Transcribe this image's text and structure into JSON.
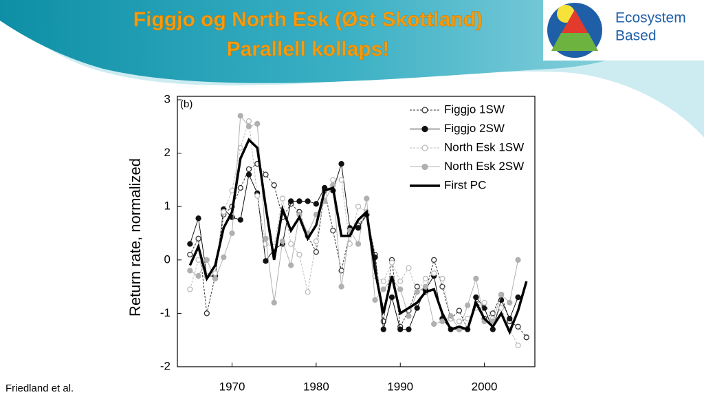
{
  "slide": {
    "title_lines": [
      "Figgjo og North Esk (Øst Skottland)",
      "Parallell kollaps!"
    ],
    "logo_lines": [
      "Ecosystem",
      "Based"
    ],
    "credit": "Friedland et al."
  },
  "chart_data": {
    "type": "line",
    "panel_label": "(b)",
    "ylabel": "Return rate, normalized",
    "x": [
      1965,
      1966,
      1967,
      1968,
      1969,
      1970,
      1971,
      1972,
      1973,
      1974,
      1975,
      1976,
      1977,
      1978,
      1979,
      1980,
      1981,
      1982,
      1983,
      1984,
      1985,
      1986,
      1987,
      1988,
      1989,
      1990,
      1991,
      1992,
      1993,
      1994,
      1995,
      1996,
      1997,
      1998,
      1999,
      2000,
      2001,
      2002,
      2003,
      2004,
      2005
    ],
    "xlim": [
      1963.5,
      2006
    ],
    "xticks": [
      1970,
      1980,
      1990,
      2000
    ],
    "ylim": [
      -2,
      3
    ],
    "yticks": [
      -2,
      -1,
      0,
      1,
      2,
      3
    ],
    "series": [
      {
        "name": "Figgjo 1SW",
        "color": "#333333",
        "marker": "open",
        "dash": true,
        "width": 1,
        "values": [
          0.1,
          0.4,
          -1.0,
          -0.3,
          0.85,
          1.0,
          1.35,
          1.7,
          1.8,
          1.6,
          1.4,
          0.8,
          1.05,
          0.9,
          0.45,
          0.15,
          1.3,
          0.55,
          -0.2,
          0.5,
          0.65,
          0.85,
          0.1,
          -1.15,
          0.0,
          -1.25,
          -0.95,
          -0.5,
          -0.6,
          0.0,
          -0.5,
          -1.1,
          -0.95,
          -1.3,
          -0.7,
          -1.1,
          -1.0,
          -0.65,
          -1.15,
          -1.25,
          -1.45
        ]
      },
      {
        "name": "Figgjo 2SW",
        "color": "#111111",
        "marker": "filled",
        "dash": false,
        "width": 1,
        "values": [
          0.3,
          0.78,
          -0.3,
          -0.3,
          0.95,
          0.8,
          0.75,
          1.6,
          1.25,
          -0.02,
          0.2,
          0.3,
          1.1,
          1.1,
          1.1,
          1.05,
          1.35,
          1.3,
          1.8,
          0.6,
          0.6,
          0.85,
          0.05,
          -1.3,
          -0.7,
          -1.3,
          -1.3,
          -0.9,
          -0.55,
          -0.3,
          -1.1,
          -1.3,
          -1.3,
          -1.3,
          -0.7,
          -0.9,
          -1.3,
          -0.75,
          -1.1,
          -0.7,
          null
        ]
      },
      {
        "name": "North Esk 1SW",
        "color": "#bbbbbb",
        "marker": "open",
        "dash": true,
        "width": 1,
        "values": [
          -0.55,
          0.0,
          -0.3,
          -0.25,
          0.9,
          1.3,
          2.1,
          2.6,
          1.2,
          0.3,
          0.25,
          1.15,
          0.3,
          0.1,
          -0.6,
          0.35,
          1.2,
          1.5,
          1.5,
          0.3,
          1.0,
          0.9,
          -0.3,
          -0.4,
          -0.05,
          -0.4,
          -0.15,
          -0.6,
          -0.35,
          -0.25,
          -0.35,
          -1.1,
          -1.15,
          -1.1,
          -0.9,
          -0.8,
          -1.1,
          -0.9,
          -1.3,
          -1.6,
          null
        ]
      },
      {
        "name": "North Esk 2SW",
        "color": "#b0b0b0",
        "marker": "filled",
        "dash": false,
        "width": 1,
        "values": [
          -0.2,
          -0.3,
          0.0,
          -0.35,
          0.05,
          0.5,
          2.7,
          2.5,
          2.55,
          0.4,
          -0.8,
          0.35,
          -0.1,
          0.85,
          0.5,
          0.85,
          1.1,
          1.4,
          -0.5,
          0.55,
          0.3,
          1.15,
          -0.75,
          -0.55,
          -0.35,
          -0.55,
          -1.05,
          -0.6,
          -0.5,
          -1.2,
          -1.15,
          -1.05,
          -1.3,
          -0.85,
          -0.35,
          -1.15,
          -1.15,
          -0.65,
          -0.8,
          0.0,
          null
        ]
      },
      {
        "name": "First PC",
        "color": "#000000",
        "marker": "none",
        "dash": false,
        "width": 3.5,
        "values": [
          -0.1,
          0.25,
          -0.35,
          -0.1,
          0.6,
          0.9,
          1.9,
          2.25,
          2.1,
          1.0,
          0.0,
          0.95,
          0.55,
          0.8,
          0.4,
          0.65,
          1.3,
          1.35,
          0.45,
          0.45,
          0.75,
          0.9,
          -0.2,
          -1.0,
          -0.3,
          -1.0,
          -0.9,
          -0.8,
          -0.6,
          -0.55,
          -1.0,
          -1.3,
          -1.25,
          -1.3,
          -0.8,
          -1.1,
          -1.25,
          -1.0,
          -1.35,
          -0.95,
          -0.4
        ]
      }
    ]
  }
}
